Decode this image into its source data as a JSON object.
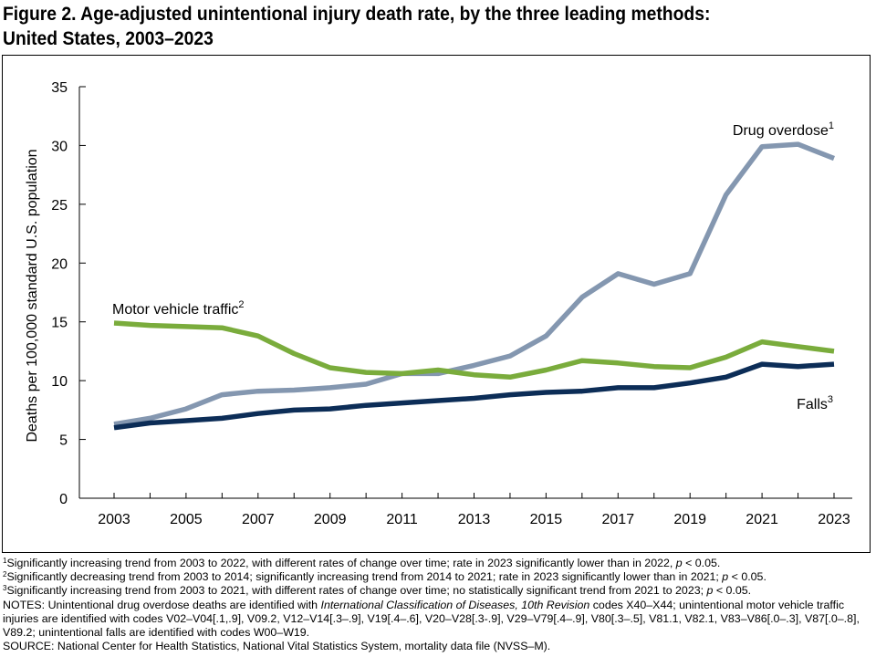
{
  "figure": {
    "title_line1": "Figure 2. Age-adjusted unintentional injury death rate, by the three leading methods:",
    "title_line2": "United States, 2003–2023"
  },
  "chart_data": {
    "type": "line",
    "ylabel": "Deaths per 100,000 standard U.S. population",
    "xlabel": "",
    "ylim": [
      0,
      35
    ],
    "yticks": [
      "0",
      "5",
      "10",
      "15",
      "20",
      "25",
      "30",
      "35"
    ],
    "xticks": [
      "2003",
      "2005",
      "2007",
      "2009",
      "2011",
      "2013",
      "2015",
      "2017",
      "2019",
      "2021",
      "2023"
    ],
    "x": [
      2003,
      2004,
      2005,
      2006,
      2007,
      2008,
      2009,
      2010,
      2011,
      2012,
      2013,
      2014,
      2015,
      2016,
      2017,
      2018,
      2019,
      2020,
      2021,
      2022,
      2023
    ],
    "grid": false,
    "legend": "direct labels on lines",
    "series": [
      {
        "name": "Drug overdose",
        "sup": "1",
        "color": "#8497b0",
        "values": [
          6.3,
          6.8,
          7.6,
          8.8,
          9.1,
          9.2,
          9.4,
          9.7,
          10.6,
          10.6,
          11.3,
          12.1,
          13.8,
          17.1,
          19.1,
          18.2,
          19.1,
          25.8,
          29.9,
          30.1,
          28.9
        ]
      },
      {
        "name": "Motor vehicle traffic",
        "sup": "2",
        "color": "#7aac3c",
        "values": [
          14.9,
          14.7,
          14.6,
          14.5,
          13.8,
          12.3,
          11.1,
          10.7,
          10.6,
          10.9,
          10.5,
          10.3,
          10.9,
          11.7,
          11.5,
          11.2,
          11.1,
          12.0,
          13.3,
          12.9,
          12.5
        ]
      },
      {
        "name": "Falls",
        "sup": "3",
        "color": "#0c2d57",
        "values": [
          6.0,
          6.4,
          6.6,
          6.8,
          7.2,
          7.5,
          7.6,
          7.9,
          8.1,
          8.3,
          8.5,
          8.8,
          9.0,
          9.1,
          9.4,
          9.4,
          9.8,
          10.3,
          11.4,
          11.2,
          11.4
        ]
      }
    ]
  },
  "notes": {
    "fn1_num": "1",
    "fn1": "Significantly increasing trend from 2003 to 2022, with different rates of change over time; rate in 2023 significantly lower than in 2022, ",
    "fn1_p": "p",
    "fn1_end": " < 0.05.",
    "fn2_num": "2",
    "fn2": "Significantly decreasing trend from 2003 to 2014; significantly increasing trend from 2014 to 2021; rate in 2023 significantly lower than in 2021; ",
    "fn2_p": "p",
    "fn2_end": " < 0.05.",
    "fn3_num": "3",
    "fn3": "Significantly increasing trend from 2003 to 2021, with different rates of change over time; no statistically significant trend from 2021 to 2023; ",
    "fn3_p": "p",
    "fn3_end": " < 0.05.",
    "notes_a": "NOTES: Unintentional drug overdose deaths are identified with ",
    "notes_icd": "International Classification of Diseases, 10th Revision",
    "notes_b": " codes X40–X44; unintentional motor vehicle traffic injuries are identified with codes V02–V04[.1,.9], V09.2, V12–V14[.3–.9], V19[.4–.6], V20–V28[.3-.9], V29–V79[.4–.9], V80[.3–.5], V81.1, V82.1, V83–V86[.0–.3], V87[.0–.8], V89.2; unintentional falls are identified with codes W00–W19.",
    "source": "SOURCE: National Center for Health Statistics, National Vital Statistics System, mortality data file (NVSS–M)."
  }
}
